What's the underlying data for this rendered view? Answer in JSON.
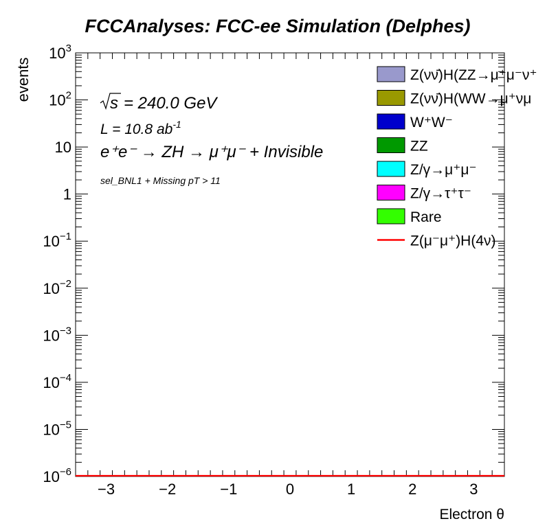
{
  "chart_data": {
    "type": "histogram",
    "title": "FCCAnalyses: FCC-ee Simulation (Delphes)",
    "xlabel": "Electron θ",
    "ylabel": "events",
    "xlim": [
      -3.5,
      3.5
    ],
    "ylim": [
      1e-06,
      1000
    ],
    "yscale": "log",
    "x_ticks": [
      {
        "value": -3,
        "label": "−3"
      },
      {
        "value": -2,
        "label": "−2"
      },
      {
        "value": -1,
        "label": "−1"
      },
      {
        "value": 0,
        "label": "0"
      },
      {
        "value": 1,
        "label": "1"
      },
      {
        "value": 2,
        "label": "2"
      },
      {
        "value": 3,
        "label": "3"
      }
    ],
    "y_ticks": [
      {
        "exp": 3,
        "base": "10",
        "sup": "3"
      },
      {
        "exp": 2,
        "base": "10",
        "sup": "2"
      },
      {
        "exp": 1,
        "base": "10",
        "sup": ""
      },
      {
        "exp": 0,
        "base": "1",
        "sup": ""
      },
      {
        "exp": -1,
        "base": "10",
        "sup": "−1"
      },
      {
        "exp": -2,
        "base": "10",
        "sup": "−2"
      },
      {
        "exp": -3,
        "base": "10",
        "sup": "−3"
      },
      {
        "exp": -4,
        "base": "10",
        "sup": "−4"
      },
      {
        "exp": -5,
        "base": "10",
        "sup": "−5"
      },
      {
        "exp": -6,
        "base": "10",
        "sup": "−6"
      }
    ],
    "annotations": {
      "energy": "= 240.0 GeV",
      "lumi_base": "L = 10.8 ab",
      "lumi_sup": "-1",
      "process": "e⁺e⁻ → ZH → μ⁺μ⁻ + Invisible",
      "selection": "sel_BNL1 + Missing pT > 11"
    },
    "series": [
      {
        "name": "Z(νν̄)H(ZZ→μ⁺μ⁻ν⁺",
        "style": "fill",
        "color": "#9999cc",
        "values": []
      },
      {
        "name": "Z(νν̄)H(WW→μ⁺νμ",
        "style": "fill",
        "color": "#999900",
        "values": []
      },
      {
        "name": "W⁺W⁻",
        "style": "fill",
        "color": "#0000cc",
        "values": []
      },
      {
        "name": "ZZ",
        "style": "fill",
        "color": "#009900",
        "values": []
      },
      {
        "name": "Z/γ→μ⁺μ⁻",
        "style": "fill",
        "color": "#00ffff",
        "values": []
      },
      {
        "name": "Z/γ→τ⁺τ⁻",
        "style": "fill",
        "color": "#ff00ff",
        "values": []
      },
      {
        "name": "Rare",
        "style": "fill",
        "color": "#33ff00",
        "values": []
      },
      {
        "name": "Z(μ⁻μ⁺)H(4ν)",
        "style": "line",
        "color": "#ff0000",
        "values": []
      }
    ],
    "legend_position": "top-right"
  }
}
